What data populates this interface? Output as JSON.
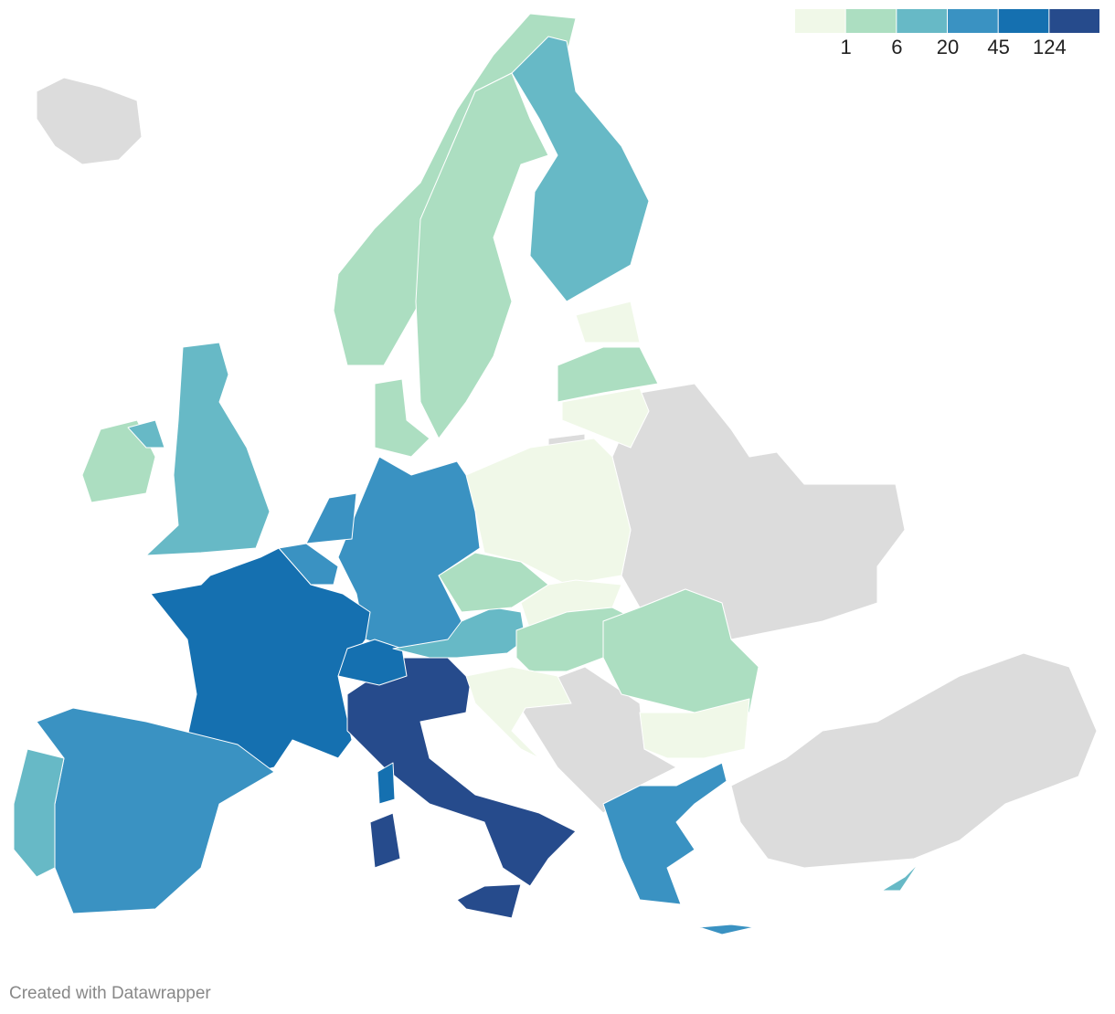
{
  "legend": {
    "colors": [
      "#f0f8e8",
      "#acdec1",
      "#67b9c6",
      "#3a92c2",
      "#1570b0",
      "#264b8c"
    ],
    "ticks": [
      1,
      6,
      20,
      45,
      124
    ]
  },
  "footer": "Created with Datawrapper"
}
